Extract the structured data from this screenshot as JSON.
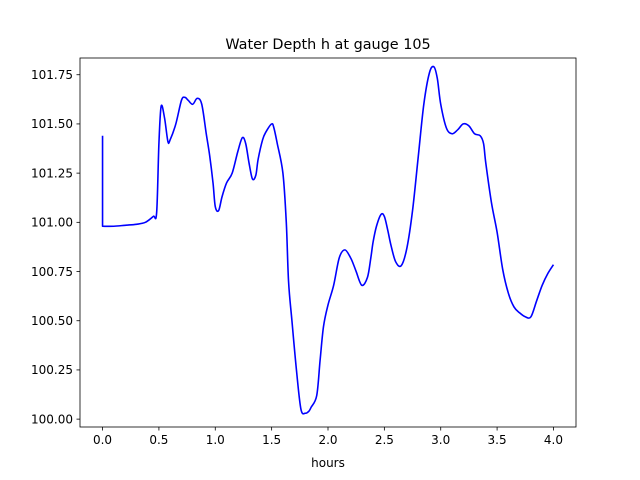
{
  "chart_data": {
    "type": "line",
    "title": "Water Depth h at gauge 105",
    "xlabel": "hours",
    "ylabel": "",
    "xlim": [
      -0.2,
      4.2
    ],
    "ylim": [
      99.96,
      101.835
    ],
    "x_ticks": [
      0.0,
      0.5,
      1.0,
      1.5,
      2.0,
      2.5,
      3.0,
      3.5,
      4.0
    ],
    "x_tick_labels": [
      "0.0",
      "0.5",
      "1.0",
      "1.5",
      "2.0",
      "2.5",
      "3.0",
      "3.5",
      "4.0"
    ],
    "y_ticks": [
      100.0,
      100.25,
      100.5,
      100.75,
      101.0,
      101.25,
      101.5,
      101.75
    ],
    "y_tick_labels": [
      "100.00",
      "100.25",
      "100.50",
      "100.75",
      "101.00",
      "101.25",
      "101.50",
      "101.75"
    ],
    "grid": false,
    "colors": {
      "line": "#0000ff"
    },
    "series": [
      {
        "x": [
          0.0,
          0.0,
          0.1,
          0.2,
          0.3,
          0.38,
          0.45,
          0.48,
          0.5,
          0.52,
          0.55,
          0.58,
          0.6,
          0.65,
          0.7,
          0.73,
          0.76,
          0.8,
          0.84,
          0.88,
          0.92,
          0.95,
          0.98,
          1.0,
          1.03,
          1.06,
          1.1,
          1.15,
          1.2,
          1.24,
          1.27,
          1.3,
          1.33,
          1.36,
          1.38,
          1.42,
          1.45,
          1.5,
          1.52,
          1.55,
          1.6,
          1.63,
          1.65,
          1.68,
          1.72,
          1.76,
          1.8,
          1.83,
          1.85,
          1.9,
          1.93,
          1.96,
          2.0,
          2.05,
          2.1,
          2.15,
          2.2,
          2.23,
          2.25,
          2.3,
          2.35,
          2.38,
          2.4,
          2.43,
          2.47,
          2.5,
          2.53,
          2.56,
          2.6,
          2.65,
          2.7,
          2.75,
          2.8,
          2.85,
          2.9,
          2.94,
          2.97,
          3.0,
          3.05,
          3.1,
          3.15,
          3.2,
          3.25,
          3.3,
          3.35,
          3.38,
          3.4,
          3.45,
          3.5,
          3.55,
          3.6,
          3.65,
          3.7,
          3.75,
          3.8,
          3.85,
          3.9,
          3.95,
          4.0
        ],
        "y": [
          101.44,
          100.98,
          100.98,
          100.985,
          100.99,
          101.0,
          101.03,
          101.05,
          101.4,
          101.59,
          101.53,
          101.41,
          101.42,
          101.5,
          101.62,
          101.635,
          101.62,
          101.6,
          101.63,
          101.6,
          101.45,
          101.34,
          101.2,
          101.08,
          101.06,
          101.13,
          101.2,
          101.25,
          101.36,
          101.43,
          101.4,
          101.3,
          101.22,
          101.24,
          101.32,
          101.42,
          101.46,
          101.5,
          101.48,
          101.4,
          101.25,
          101.0,
          100.7,
          100.5,
          100.25,
          100.05,
          100.03,
          100.04,
          100.06,
          100.12,
          100.3,
          100.47,
          100.58,
          100.68,
          100.82,
          100.86,
          100.82,
          100.78,
          100.75,
          100.68,
          100.72,
          100.82,
          100.9,
          100.98,
          101.04,
          101.03,
          100.96,
          100.88,
          100.8,
          100.78,
          100.87,
          101.06,
          101.33,
          101.6,
          101.76,
          101.79,
          101.73,
          101.6,
          101.48,
          101.45,
          101.47,
          101.5,
          101.49,
          101.45,
          101.44,
          101.4,
          101.3,
          101.1,
          100.95,
          100.76,
          100.64,
          100.57,
          100.54,
          100.52,
          100.52,
          100.6,
          100.68,
          100.74,
          100.785
        ]
      }
    ]
  }
}
